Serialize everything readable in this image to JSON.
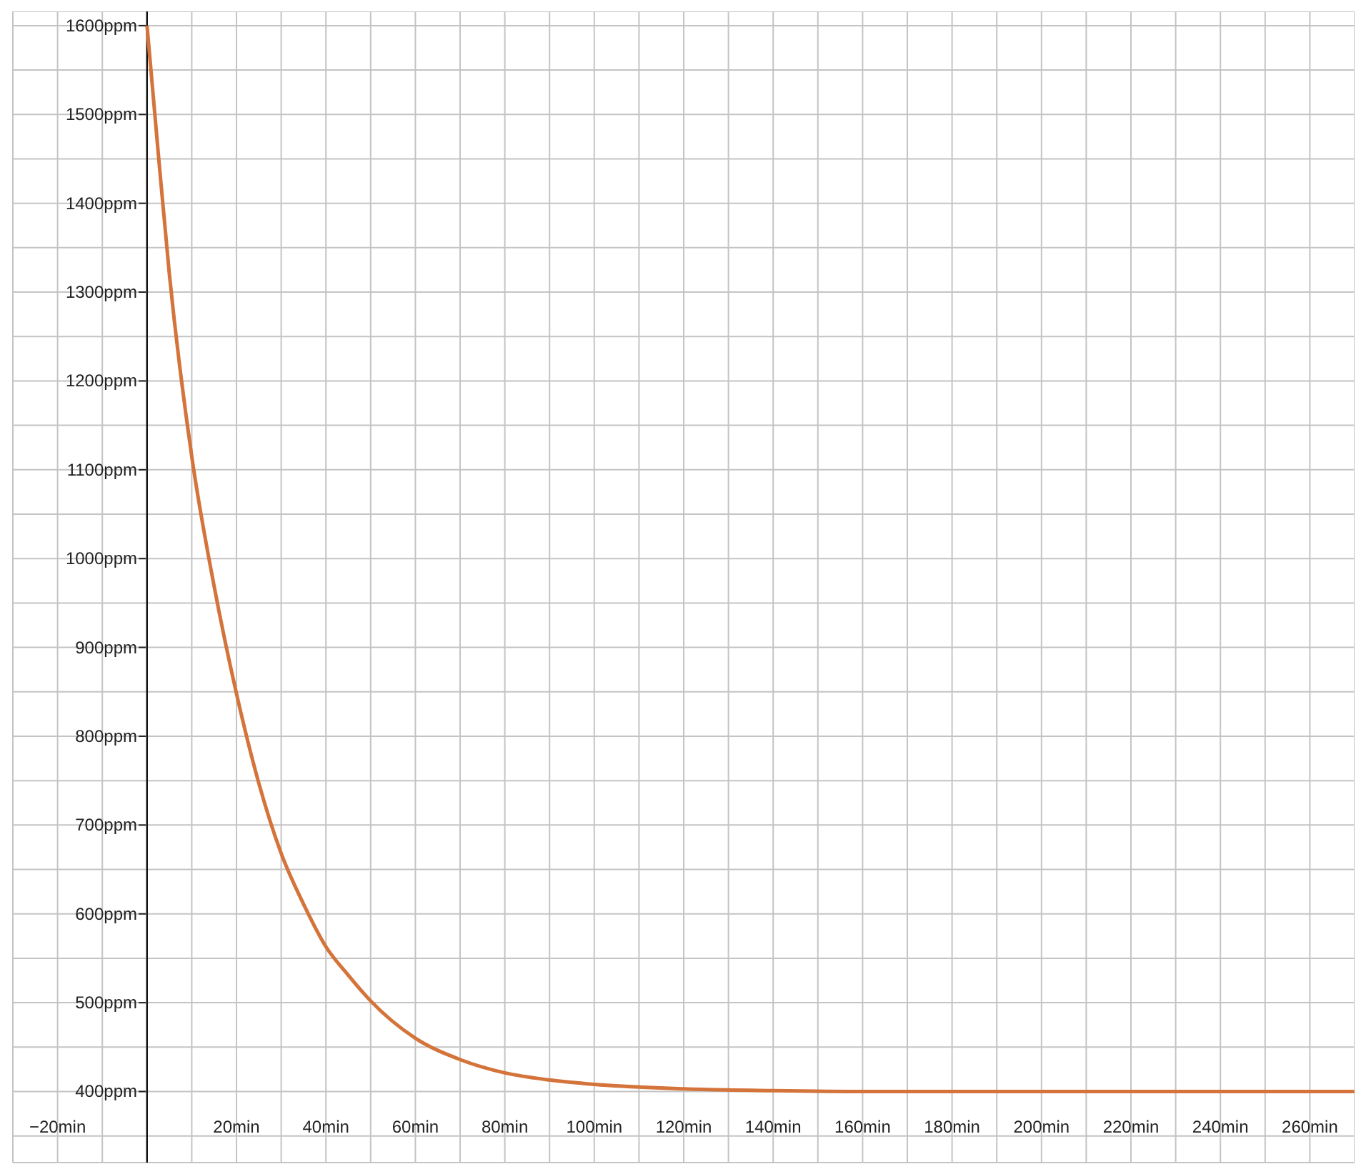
{
  "chart_data": {
    "type": "line",
    "x": [
      0,
      2.5,
      5,
      10,
      15,
      20,
      25,
      30,
      35,
      40,
      45,
      50,
      60,
      70,
      80,
      90,
      100,
      120,
      140,
      160,
      200,
      240,
      270
    ],
    "series": [
      {
        "color": "#d4733a",
        "values": [
          1600,
          1457,
          1320,
          1115,
          969,
          848,
          747,
          668,
          611,
          563,
          531,
          502,
          460,
          436,
          421,
          413,
          408,
          403,
          401,
          400,
          400,
          400,
          400
        ]
      }
    ],
    "xlim": [
      -30,
      270
    ],
    "ylim": [
      320,
      1616
    ],
    "xticks": [
      {
        "value": -30,
        "label": null
      },
      {
        "value": -20,
        "label": "−20min"
      },
      {
        "value": -10,
        "label": null
      },
      {
        "value": 0,
        "label": null
      },
      {
        "value": 10,
        "label": null
      },
      {
        "value": 20,
        "label": "20min"
      },
      {
        "value": 30,
        "label": null
      },
      {
        "value": 40,
        "label": "40min"
      },
      {
        "value": 50,
        "label": null
      },
      {
        "value": 60,
        "label": "60min"
      },
      {
        "value": 70,
        "label": null
      },
      {
        "value": 80,
        "label": "80min"
      },
      {
        "value": 90,
        "label": null
      },
      {
        "value": 100,
        "label": "100min"
      },
      {
        "value": 110,
        "label": null
      },
      {
        "value": 120,
        "label": "120min"
      },
      {
        "value": 130,
        "label": null
      },
      {
        "value": 140,
        "label": "140min"
      },
      {
        "value": 150,
        "label": null
      },
      {
        "value": 160,
        "label": "160min"
      },
      {
        "value": 170,
        "label": null
      },
      {
        "value": 180,
        "label": "180min"
      },
      {
        "value": 190,
        "label": null
      },
      {
        "value": 200,
        "label": "200min"
      },
      {
        "value": 210,
        "label": null
      },
      {
        "value": 220,
        "label": "220min"
      },
      {
        "value": 230,
        "label": null
      },
      {
        "value": 240,
        "label": "240min"
      },
      {
        "value": 250,
        "label": null
      },
      {
        "value": 260,
        "label": "260min"
      },
      {
        "value": 270,
        "label": null
      }
    ],
    "yticks": [
      {
        "value": 350,
        "label": null
      },
      {
        "value": 400,
        "label": "400ppm"
      },
      {
        "value": 450,
        "label": null
      },
      {
        "value": 500,
        "label": "500ppm"
      },
      {
        "value": 550,
        "label": null
      },
      {
        "value": 600,
        "label": "600ppm"
      },
      {
        "value": 650,
        "label": null
      },
      {
        "value": 700,
        "label": "700ppm"
      },
      {
        "value": 750,
        "label": null
      },
      {
        "value": 800,
        "label": "800ppm"
      },
      {
        "value": 850,
        "label": null
      },
      {
        "value": 900,
        "label": "900ppm"
      },
      {
        "value": 950,
        "label": null
      },
      {
        "value": 1000,
        "label": "1000ppm"
      },
      {
        "value": 1050,
        "label": null
      },
      {
        "value": 1100,
        "label": "1100ppm"
      },
      {
        "value": 1150,
        "label": null
      },
      {
        "value": 1200,
        "label": "1200ppm"
      },
      {
        "value": 1250,
        "label": null
      },
      {
        "value": 1300,
        "label": "1300ppm"
      },
      {
        "value": 1350,
        "label": null
      },
      {
        "value": 1400,
        "label": "1400ppm"
      },
      {
        "value": 1450,
        "label": null
      },
      {
        "value": 1500,
        "label": "1500ppm"
      },
      {
        "value": 1550,
        "label": null
      },
      {
        "value": 1600,
        "label": "1600ppm"
      }
    ],
    "grid": true,
    "marker": "none"
  }
}
